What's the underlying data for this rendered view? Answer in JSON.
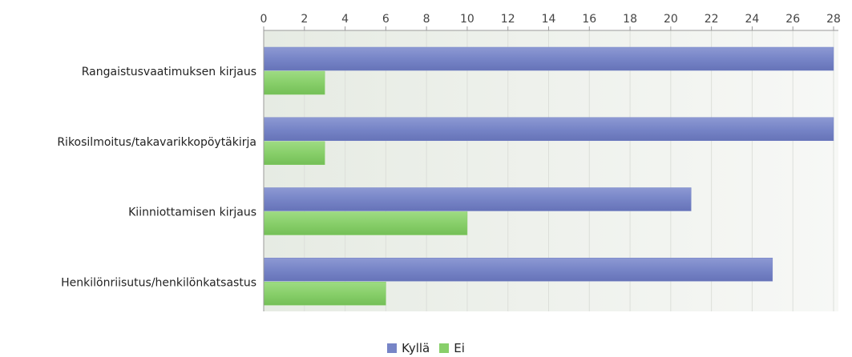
{
  "chart_data": {
    "type": "bar",
    "orientation": "horizontal",
    "categories": [
      "Rangaistusvaatimuksen kirjaus",
      "Rikosilmoitus/takavarikkopöytäkirja",
      "Kiinniottamisen kirjaus",
      "Henkilönriisutus/henkilönkatsastus"
    ],
    "series": [
      {
        "name": "Kyllä",
        "values": [
          28,
          28,
          21,
          25
        ],
        "color": "#7785c7"
      },
      {
        "name": "Ei",
        "values": [
          3,
          3,
          10,
          6
        ],
        "color": "#88cf6a"
      }
    ],
    "xlim": [
      0,
      28
    ],
    "x_ticks": [
      0,
      2,
      4,
      6,
      8,
      10,
      12,
      14,
      16,
      18,
      20,
      22,
      24,
      26,
      28
    ],
    "x_axis_position": "top",
    "grid": true,
    "legend": "bottom-center",
    "plot_background": "#eef1ec"
  }
}
